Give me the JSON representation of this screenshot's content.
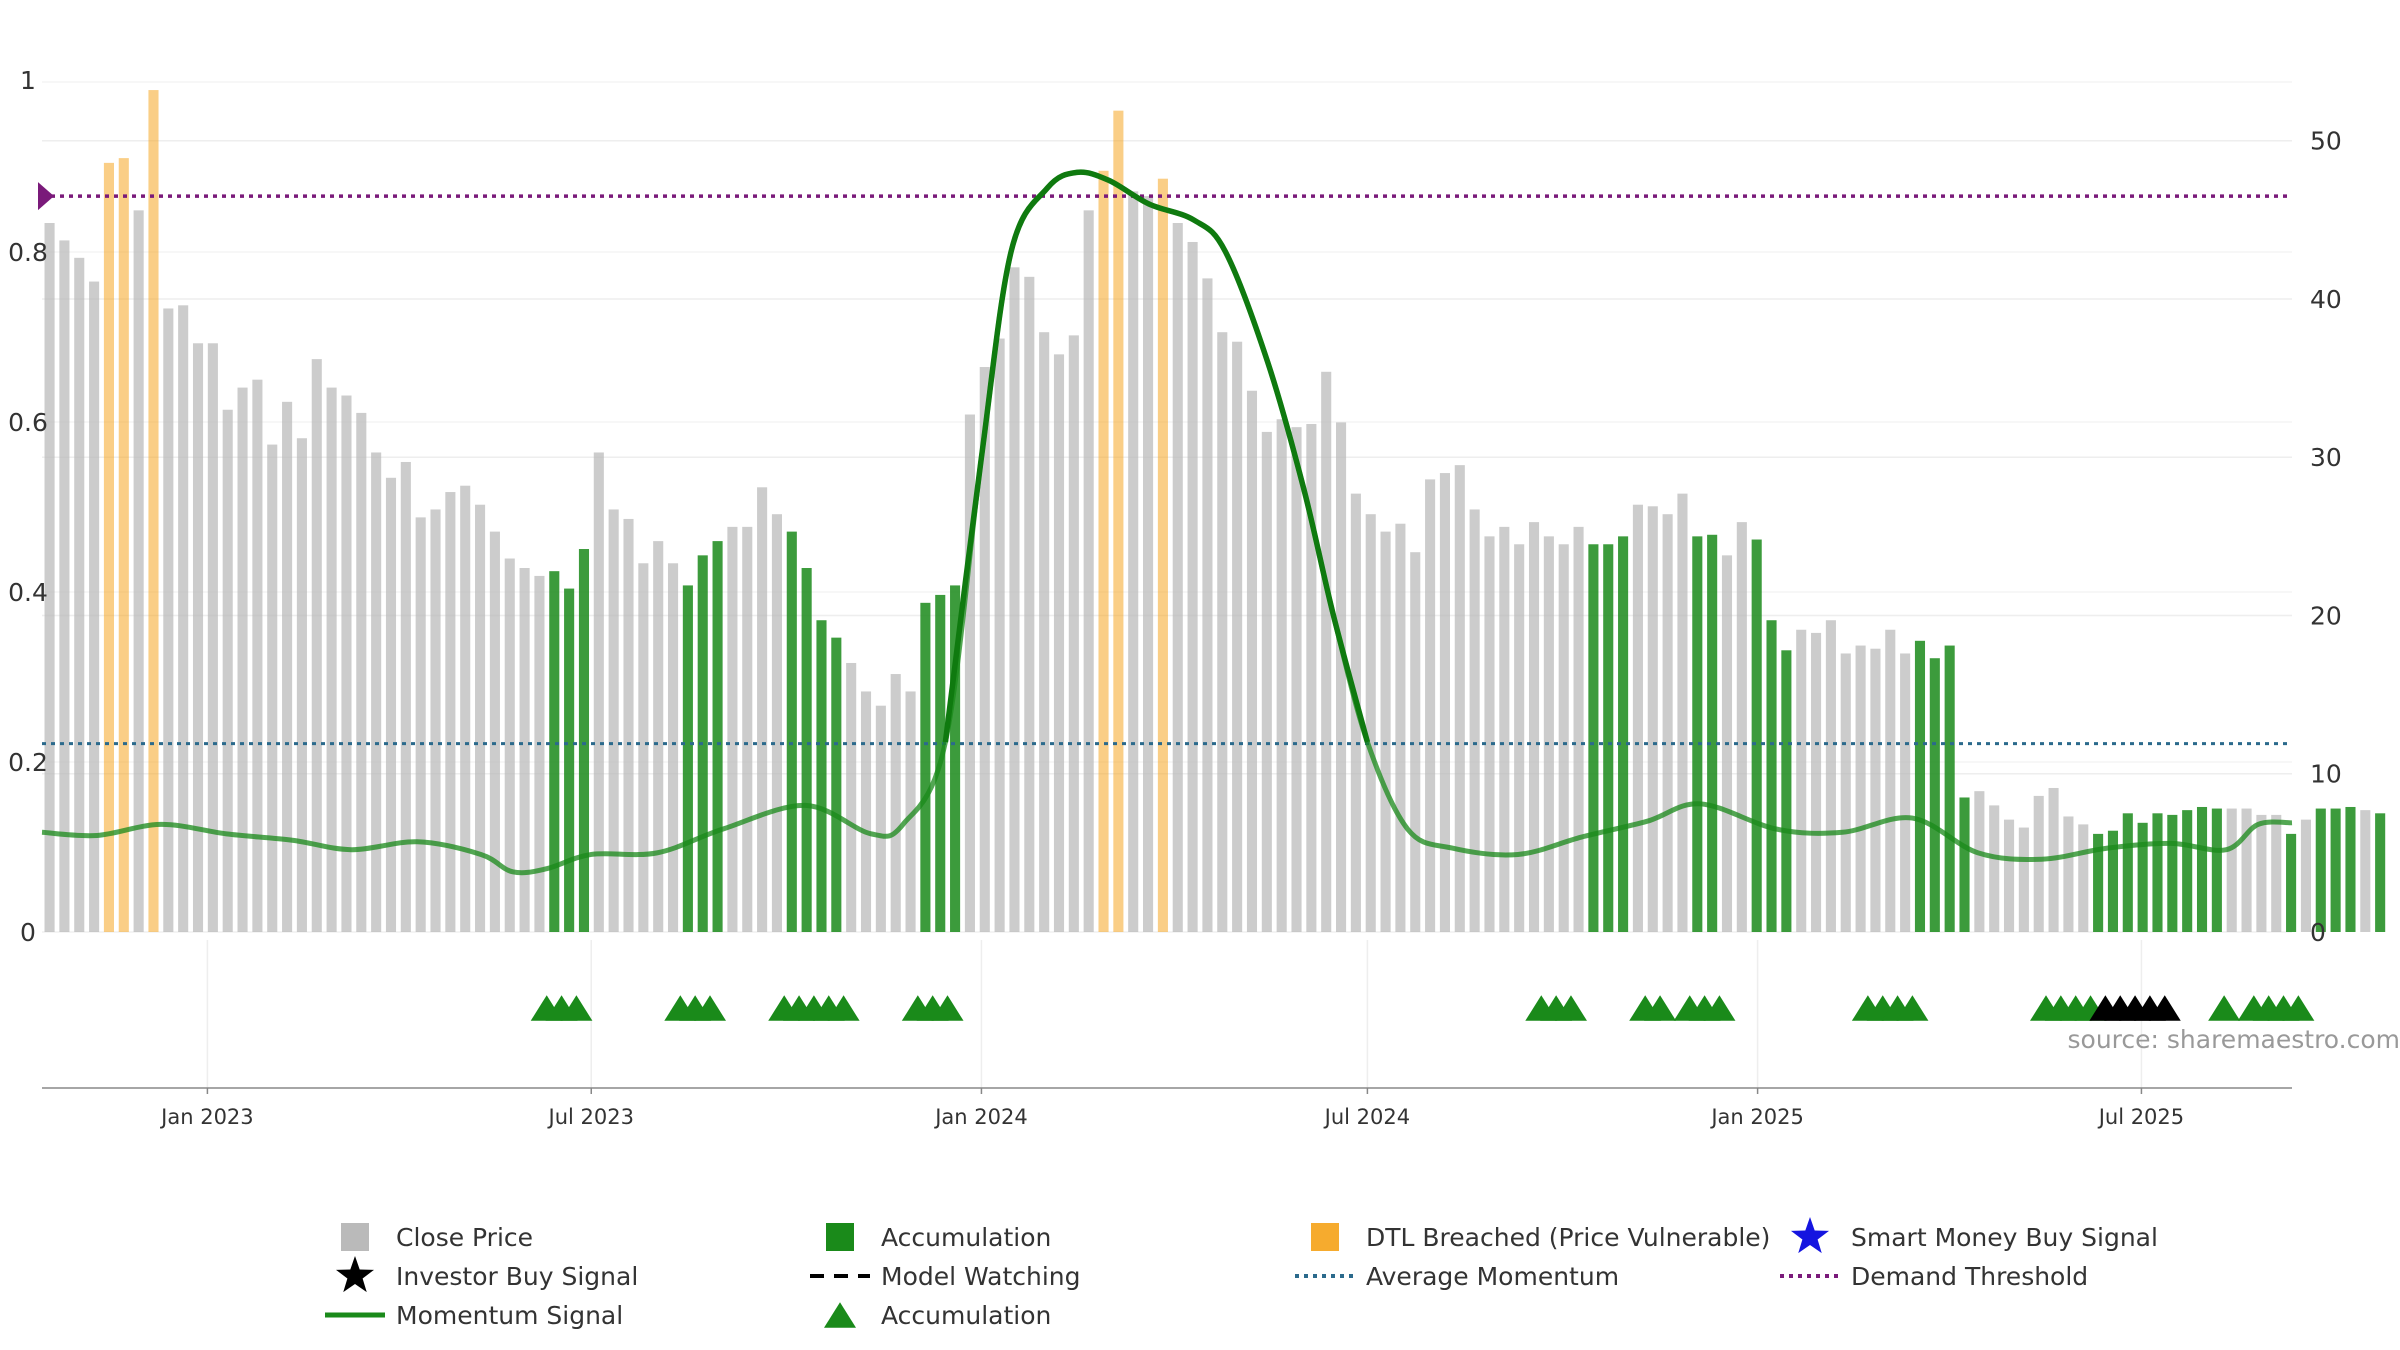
{
  "chart_data": {
    "type": "bar",
    "left_axis": {
      "ylim": [
        0,
        1
      ],
      "ticks": [
        0,
        0.2,
        0.4,
        0.6,
        0.8,
        1
      ]
    },
    "right_axis": {
      "ylim": [
        0,
        55.1
      ],
      "ticks": [
        0,
        10,
        20,
        30,
        40,
        50
      ]
    },
    "x_axis": {
      "start": "2022-10-15",
      "end": "2025-09-10",
      "ticks": [
        {
          "date": "2023-01-01",
          "label": "Jan 2023"
        },
        {
          "date": "2023-07-01",
          "label": "Jul 2023"
        },
        {
          "date": "2024-01-01",
          "label": "Jan 2024"
        },
        {
          "date": "2024-07-01",
          "label": "Jul 2024"
        },
        {
          "date": "2025-01-01",
          "label": "Jan 2025"
        },
        {
          "date": "2025-07-01",
          "label": "Jul 2025"
        }
      ]
    },
    "bar_start": "2022-10-15",
    "bar_step_days": 7,
    "bars": [
      [
        44.8,
        "close"
      ],
      [
        43.7,
        "close"
      ],
      [
        42.6,
        "close"
      ],
      [
        41.1,
        "close"
      ],
      [
        48.6,
        "dtl"
      ],
      [
        48.9,
        "dtl"
      ],
      [
        45.6,
        "close"
      ],
      [
        53.2,
        "dtl"
      ],
      [
        39.4,
        "close"
      ],
      [
        39.6,
        "close"
      ],
      [
        37.2,
        "close"
      ],
      [
        37.2,
        "close"
      ],
      [
        33.0,
        "close"
      ],
      [
        34.4,
        "close"
      ],
      [
        34.9,
        "close"
      ],
      [
        30.8,
        "close"
      ],
      [
        33.5,
        "close"
      ],
      [
        31.2,
        "close"
      ],
      [
        36.2,
        "close"
      ],
      [
        34.4,
        "close"
      ],
      [
        33.9,
        "close"
      ],
      [
        32.8,
        "close"
      ],
      [
        30.3,
        "close"
      ],
      [
        28.7,
        "close"
      ],
      [
        29.7,
        "close"
      ],
      [
        26.2,
        "close"
      ],
      [
        26.7,
        "close"
      ],
      [
        27.8,
        "close"
      ],
      [
        28.2,
        "close"
      ],
      [
        27.0,
        "close"
      ],
      [
        25.3,
        "close"
      ],
      [
        23.6,
        "close"
      ],
      [
        23.0,
        "close"
      ],
      [
        22.5,
        "close"
      ],
      [
        22.8,
        "acc"
      ],
      [
        21.7,
        "acc"
      ],
      [
        24.2,
        "acc"
      ],
      [
        30.3,
        "close"
      ],
      [
        26.7,
        "close"
      ],
      [
        26.1,
        "close"
      ],
      [
        23.3,
        "close"
      ],
      [
        24.7,
        "close"
      ],
      [
        23.3,
        "close"
      ],
      [
        21.9,
        "acc"
      ],
      [
        23.8,
        "acc"
      ],
      [
        24.7,
        "acc"
      ],
      [
        25.6,
        "close"
      ],
      [
        25.6,
        "close"
      ],
      [
        28.1,
        "close"
      ],
      [
        26.4,
        "close"
      ],
      [
        25.3,
        "acc"
      ],
      [
        23.0,
        "acc"
      ],
      [
        19.7,
        "acc"
      ],
      [
        18.6,
        "acc"
      ],
      [
        17.0,
        "close"
      ],
      [
        15.2,
        "close"
      ],
      [
        14.3,
        "close"
      ],
      [
        16.3,
        "close"
      ],
      [
        15.2,
        "close"
      ],
      [
        20.8,
        "acc"
      ],
      [
        21.3,
        "acc"
      ],
      [
        21.9,
        "acc"
      ],
      [
        32.7,
        "close"
      ],
      [
        35.7,
        "close"
      ],
      [
        37.5,
        "close"
      ],
      [
        42.0,
        "close"
      ],
      [
        41.4,
        "close"
      ],
      [
        37.9,
        "close"
      ],
      [
        36.5,
        "close"
      ],
      [
        37.7,
        "close"
      ],
      [
        45.6,
        "close"
      ],
      [
        48.1,
        "dtl"
      ],
      [
        51.9,
        "dtl"
      ],
      [
        46.8,
        "close"
      ],
      [
        46.5,
        "close"
      ],
      [
        47.6,
        "dtl"
      ],
      [
        44.8,
        "close"
      ],
      [
        43.6,
        "close"
      ],
      [
        41.3,
        "close"
      ],
      [
        37.9,
        "close"
      ],
      [
        37.3,
        "close"
      ],
      [
        34.2,
        "close"
      ],
      [
        31.6,
        "close"
      ],
      [
        32.4,
        "close"
      ],
      [
        31.9,
        "close"
      ],
      [
        32.1,
        "close"
      ],
      [
        35.4,
        "close"
      ],
      [
        32.2,
        "close"
      ],
      [
        27.7,
        "close"
      ],
      [
        26.4,
        "close"
      ],
      [
        25.3,
        "close"
      ],
      [
        25.8,
        "close"
      ],
      [
        24.0,
        "close"
      ],
      [
        28.6,
        "close"
      ],
      [
        29.0,
        "close"
      ],
      [
        29.5,
        "close"
      ],
      [
        26.7,
        "close"
      ],
      [
        25.0,
        "close"
      ],
      [
        25.6,
        "close"
      ],
      [
        24.5,
        "close"
      ],
      [
        25.9,
        "close"
      ],
      [
        25.0,
        "close"
      ],
      [
        24.5,
        "close"
      ],
      [
        25.6,
        "close"
      ],
      [
        24.5,
        "acc"
      ],
      [
        24.5,
        "acc"
      ],
      [
        25.0,
        "acc"
      ],
      [
        27.0,
        "close"
      ],
      [
        26.9,
        "close"
      ],
      [
        26.4,
        "close"
      ],
      [
        27.7,
        "close"
      ],
      [
        25.0,
        "acc"
      ],
      [
        25.1,
        "acc"
      ],
      [
        23.8,
        "close"
      ],
      [
        25.9,
        "close"
      ],
      [
        24.8,
        "acc"
      ],
      [
        19.7,
        "acc"
      ],
      [
        17.8,
        "acc"
      ],
      [
        19.1,
        "close"
      ],
      [
        18.9,
        "close"
      ],
      [
        19.7,
        "close"
      ],
      [
        17.6,
        "close"
      ],
      [
        18.1,
        "close"
      ],
      [
        17.9,
        "close"
      ],
      [
        19.1,
        "close"
      ],
      [
        17.6,
        "close"
      ],
      [
        18.4,
        "acc"
      ],
      [
        17.3,
        "acc"
      ],
      [
        18.1,
        "acc"
      ],
      [
        8.5,
        "acc"
      ],
      [
        8.9,
        "close"
      ],
      [
        8.0,
        "close"
      ],
      [
        7.1,
        "close"
      ],
      [
        6.6,
        "close"
      ],
      [
        8.6,
        "close"
      ],
      [
        9.1,
        "close"
      ],
      [
        7.3,
        "close"
      ],
      [
        6.8,
        "close"
      ],
      [
        6.2,
        "acc"
      ],
      [
        6.4,
        "acc"
      ],
      [
        7.5,
        "acc"
      ],
      [
        6.9,
        "acc"
      ],
      [
        7.5,
        "acc"
      ],
      [
        7.4,
        "acc"
      ],
      [
        7.7,
        "acc"
      ],
      [
        7.9,
        "acc"
      ],
      [
        7.8,
        "acc"
      ],
      [
        7.8,
        "close"
      ],
      [
        7.8,
        "close"
      ],
      [
        7.4,
        "close"
      ],
      [
        7.4,
        "close"
      ],
      [
        6.2,
        "acc"
      ],
      [
        7.1,
        "close"
      ],
      [
        7.8,
        "acc"
      ],
      [
        7.8,
        "acc"
      ],
      [
        7.9,
        "acc"
      ],
      [
        7.7,
        "close"
      ],
      [
        7.5,
        "acc"
      ]
    ],
    "momentum_signal": [
      [
        "2022-10-15",
        6.3
      ],
      [
        "2022-11-10",
        6.1
      ],
      [
        "2022-12-10",
        6.8
      ],
      [
        "2023-01-10",
        6.2
      ],
      [
        "2023-02-10",
        5.8
      ],
      [
        "2023-03-10",
        5.2
      ],
      [
        "2023-04-10",
        5.7
      ],
      [
        "2023-05-10",
        4.9
      ],
      [
        "2023-05-25",
        3.8
      ],
      [
        "2023-06-10",
        4.0
      ],
      [
        "2023-07-01",
        4.9
      ],
      [
        "2023-08-01",
        5.0
      ],
      [
        "2023-09-01",
        6.5
      ],
      [
        "2023-10-10",
        8.0
      ],
      [
        "2023-11-10",
        6.2
      ],
      [
        "2023-11-25",
        6.8
      ],
      [
        "2023-12-15",
        12.0
      ],
      [
        "2024-01-01",
        30.0
      ],
      [
        "2024-01-15",
        43.0
      ],
      [
        "2024-02-01",
        47.0
      ],
      [
        "2024-02-15",
        48.0
      ],
      [
        "2024-03-01",
        47.5
      ],
      [
        "2024-03-20",
        46.0
      ],
      [
        "2024-04-10",
        45.0
      ],
      [
        "2024-04-25",
        43.0
      ],
      [
        "2024-05-15",
        36.0
      ],
      [
        "2024-06-01",
        28.0
      ],
      [
        "2024-06-15",
        20.0
      ],
      [
        "2024-07-01",
        12.0
      ],
      [
        "2024-07-20",
        6.5
      ],
      [
        "2024-08-10",
        5.3
      ],
      [
        "2024-09-10",
        4.9
      ],
      [
        "2024-10-10",
        6.0
      ],
      [
        "2024-11-10",
        7.0
      ],
      [
        "2024-12-05",
        8.1
      ],
      [
        "2025-01-10",
        6.5
      ],
      [
        "2025-02-10",
        6.3
      ],
      [
        "2025-03-15",
        7.2
      ],
      [
        "2025-04-15",
        5.0
      ],
      [
        "2025-05-15",
        4.6
      ],
      [
        "2025-06-15",
        5.3
      ],
      [
        "2025-07-15",
        5.6
      ],
      [
        "2025-08-10",
        5.2
      ],
      [
        "2025-08-25",
        6.8
      ],
      [
        "2025-09-10",
        6.9
      ]
    ],
    "average_momentum": 11.9,
    "demand_threshold": 46.5,
    "accumulation_markers": [
      "2023-06-10",
      "2023-06-17",
      "2023-06-24",
      "2023-08-12",
      "2023-08-19",
      "2023-08-26",
      "2023-09-30",
      "2023-10-07",
      "2023-10-14",
      "2023-10-21",
      "2023-10-28",
      "2023-12-02",
      "2023-12-09",
      "2023-12-16",
      "2024-09-21",
      "2024-09-28",
      "2024-10-05",
      "2024-11-09",
      "2024-11-16",
      "2024-11-30",
      "2024-12-07",
      "2024-12-14",
      "2025-02-22",
      "2025-03-01",
      "2025-03-08",
      "2025-03-15",
      "2025-05-17",
      "2025-05-24",
      "2025-05-31",
      "2025-06-07",
      "2025-08-09",
      "2025-08-23",
      "2025-08-30",
      "2025-09-06",
      "2025-09-13"
    ],
    "investor_buy_markers": [
      "2025-06-14",
      "2025-06-21",
      "2025-06-28",
      "2025-07-05",
      "2025-07-12"
    ],
    "legend": [
      {
        "label": "Close Price",
        "symbol": "square",
        "color": "#b6b6b6"
      },
      {
        "label": "Investor Buy Signal",
        "symbol": "star",
        "color": "#000000"
      },
      {
        "label": "Momentum Signal",
        "symbol": "line",
        "color": "#1a8a1a"
      },
      {
        "label": "Accumulation",
        "symbol": "square",
        "color": "#1a8a1a"
      },
      {
        "label": "Model Watching",
        "symbol": "dash",
        "color": "#000000"
      },
      {
        "label": "Accumulation",
        "symbol": "triangle",
        "color": "#1a8a1a"
      },
      {
        "label": "DTL Breached (Price Vulnerable)",
        "symbol": "square",
        "color": "#f5a623"
      },
      {
        "label": "Average Momentum",
        "symbol": "dotted",
        "color": "#2b6a8c"
      },
      {
        "label": "Smart Money Buy Signal",
        "symbol": "star",
        "color": "#1515e0"
      },
      {
        "label": "Demand Threshold",
        "symbol": "dotted",
        "color": "#7a1a7a"
      }
    ],
    "source": "source: sharemaestro.com"
  },
  "colors": {
    "close": "#b6b6b6",
    "accumulation": "#1a8a1a",
    "dtl": "#f5a623",
    "momentum": "#1a8a1a",
    "average_momentum": "#2b6a8c",
    "demand_threshold": "#7a1a7a",
    "investor": "#000000",
    "smart_money": "#1515e0"
  }
}
